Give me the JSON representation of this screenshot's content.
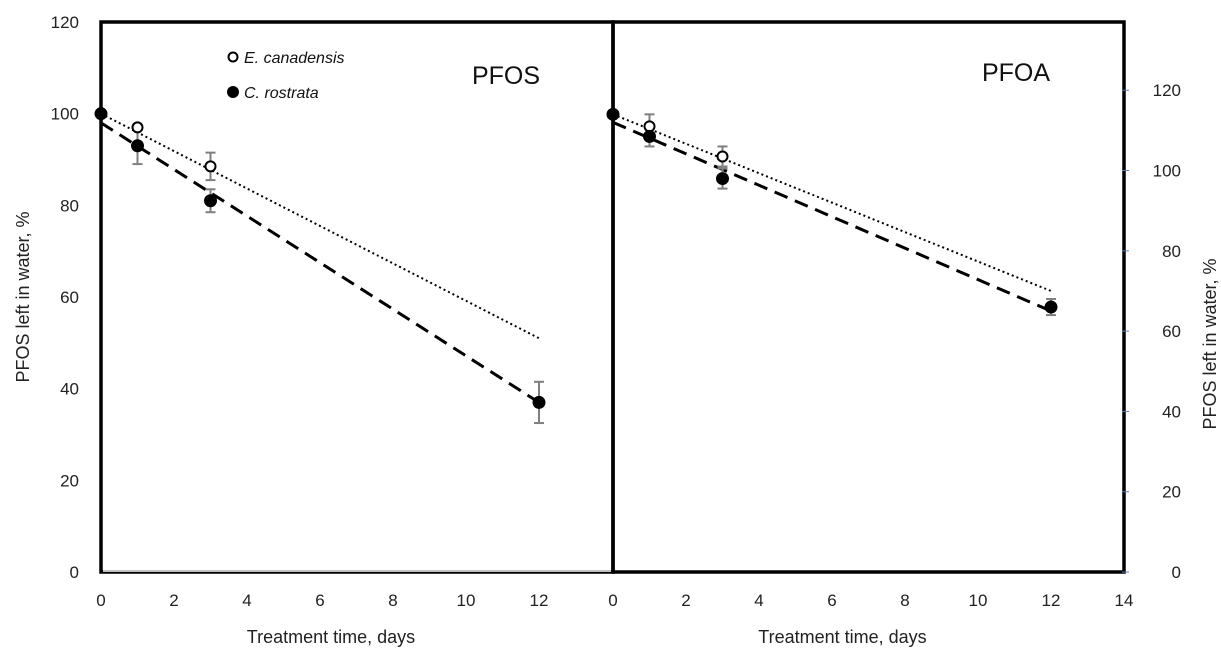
{
  "chart_data": [
    {
      "type": "scatter",
      "title": "PFOS",
      "xlabel": "Treatment time, days",
      "ylabel": "PFOS left in water, %",
      "xlim": [
        0,
        13
      ],
      "ylim": [
        0,
        120
      ],
      "x_ticks": [
        "0",
        "2",
        "4",
        "6",
        "8",
        "10",
        "12"
      ],
      "y_ticks": [
        "0",
        "20",
        "40",
        "60",
        "80",
        "100",
        "120"
      ],
      "legend_position": "top-center",
      "series": [
        {
          "name": "E. canadensis",
          "marker": "open-circle",
          "x": [
            0,
            1,
            3
          ],
          "y": [
            100,
            97,
            88.5
          ],
          "error": [
            0,
            0,
            3
          ],
          "trendline": {
            "style": "dotted",
            "x": [
              0,
              12
            ],
            "y": [
              100,
              51
            ]
          }
        },
        {
          "name": "C. rostrata",
          "marker": "filled-circle",
          "x": [
            0,
            1,
            3,
            12
          ],
          "y": [
            100,
            93,
            81,
            37
          ],
          "error": [
            0,
            4,
            2.5,
            4.5
          ],
          "trendline": {
            "style": "dashed",
            "x": [
              0,
              12
            ],
            "y": [
              98,
              37
            ]
          }
        }
      ]
    },
    {
      "type": "scatter",
      "title": "PFOA",
      "xlabel": "Treatment time, days",
      "ylabel": "PFOS left in water, %",
      "xlim": [
        0,
        14
      ],
      "ylim": [
        0,
        137
      ],
      "x_ticks": [
        "0",
        "2",
        "4",
        "6",
        "8",
        "10",
        "12",
        "14"
      ],
      "y_ticks": [
        "0",
        "20",
        "40",
        "60",
        "80",
        "100",
        "120"
      ],
      "series": [
        {
          "name": "E. canadensis",
          "marker": "open-circle",
          "x": [
            0,
            1,
            3
          ],
          "y": [
            114,
            111,
            103.5
          ],
          "error": [
            0,
            3,
            2.5
          ],
          "trendline": {
            "style": "dotted",
            "x": [
              0,
              12
            ],
            "y": [
              114,
              70
            ]
          }
        },
        {
          "name": "C. rostrata",
          "marker": "filled-circle",
          "x": [
            0,
            1,
            3,
            12
          ],
          "y": [
            114,
            108.5,
            98,
            66
          ],
          "error": [
            0,
            2.5,
            2.5,
            2
          ],
          "trendline": {
            "style": "dashed",
            "x": [
              0,
              12
            ],
            "y": [
              112,
              65
            ]
          }
        }
      ]
    }
  ],
  "colors": {
    "frame": "#000000",
    "marker": "#000000",
    "error_bar": "#7f7f7f",
    "gridline_bottom": "#c0c0c0",
    "right_tick": "#5b7fb5"
  }
}
